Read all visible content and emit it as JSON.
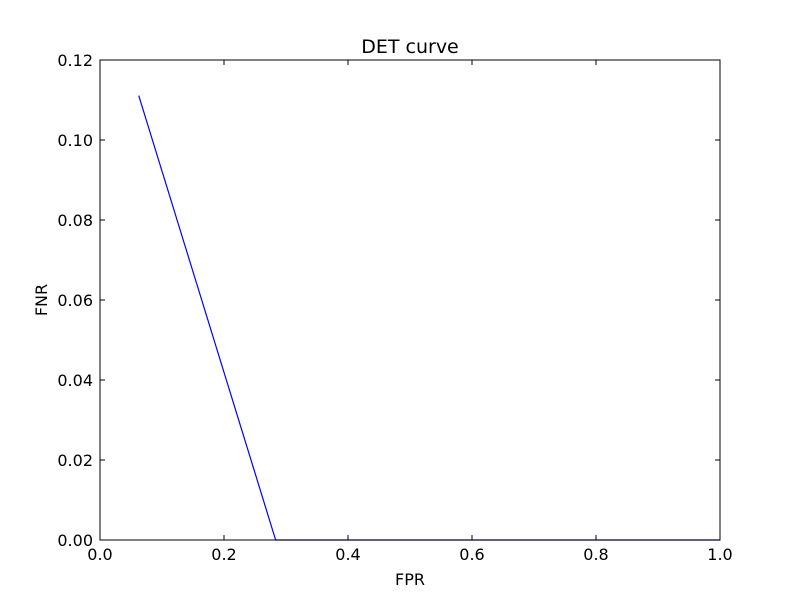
{
  "chart_data": {
    "type": "line",
    "title": "DET curve",
    "xlabel": "FPR",
    "ylabel": "FNR",
    "xlim": [
      0.0,
      1.0
    ],
    "ylim": [
      0.0,
      0.12
    ],
    "xticks": [
      0.0,
      0.2,
      0.4,
      0.6,
      0.8,
      1.0
    ],
    "xtick_labels": [
      "0.0",
      "0.2",
      "0.4",
      "0.6",
      "0.8",
      "1.0"
    ],
    "yticks": [
      0.0,
      0.02,
      0.04,
      0.06,
      0.08,
      0.1,
      0.12
    ],
    "ytick_labels": [
      "0.00",
      "0.02",
      "0.04",
      "0.06",
      "0.08",
      "0.10",
      "0.12"
    ],
    "grid": false,
    "series": [
      {
        "color": "#0000ff",
        "x": [
          0.0625,
          0.2833,
          1.0
        ],
        "y": [
          0.1111,
          0.0,
          0.0
        ]
      }
    ]
  }
}
